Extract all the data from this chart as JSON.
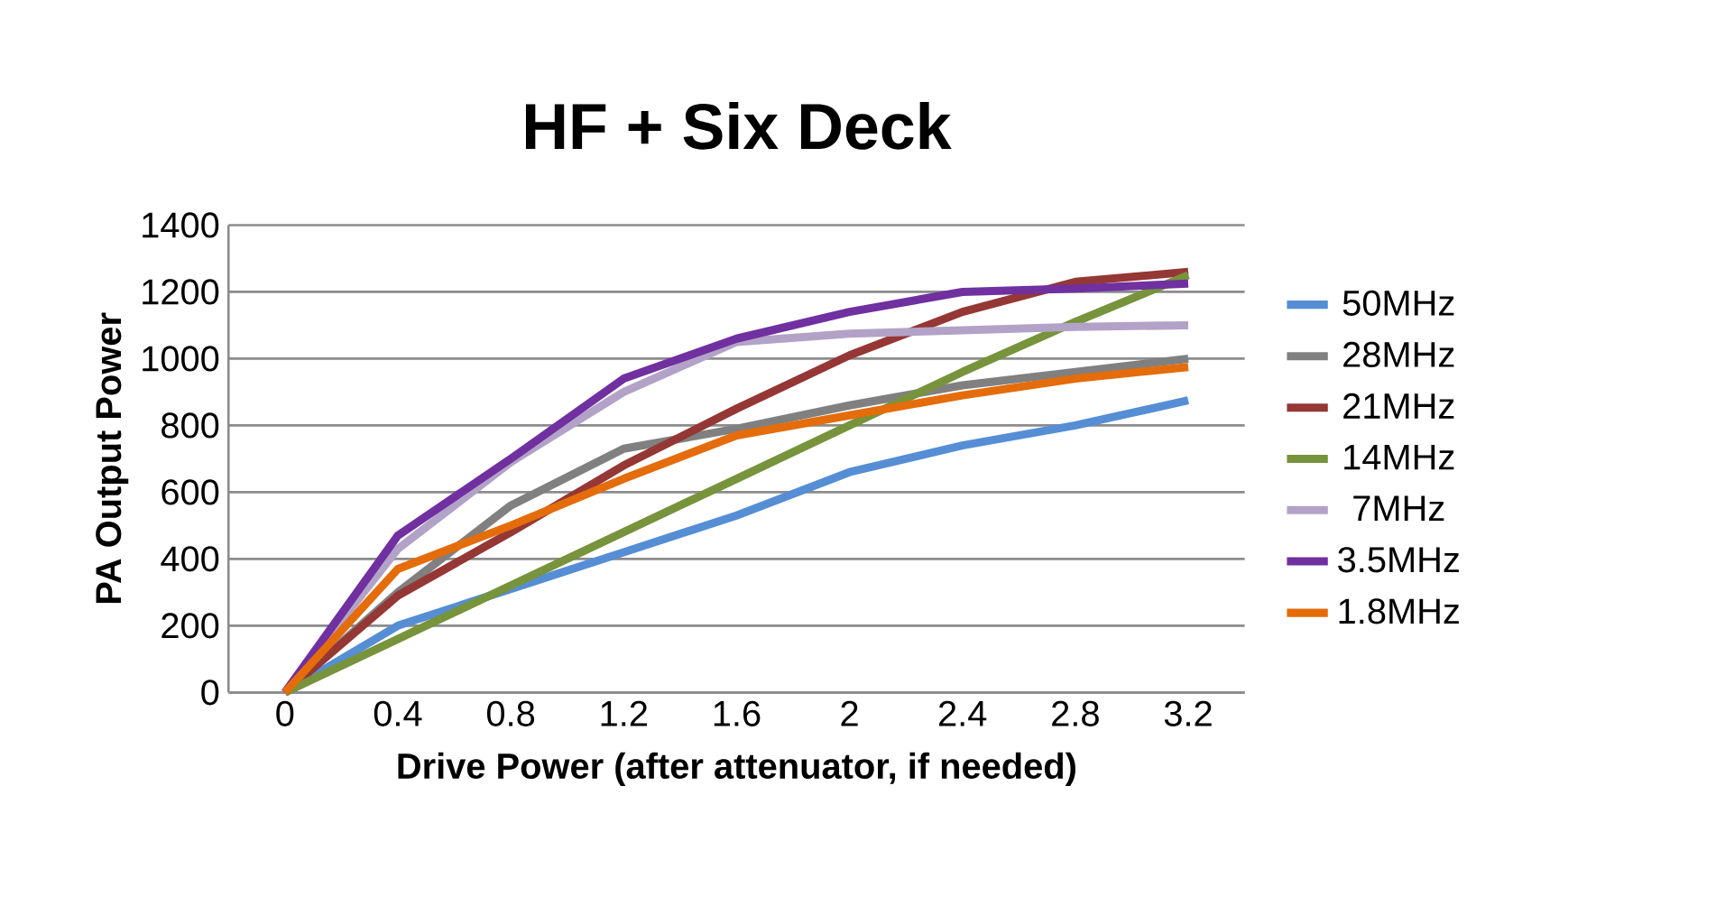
{
  "chart_data": {
    "type": "line",
    "title": "HF + Six Deck",
    "xlabel": "Drive Power (after attenuator, if needed)",
    "ylabel": "PA Output Power",
    "categories": [
      "0",
      "0.4",
      "0.8",
      "1.2",
      "1.6",
      "2",
      "2.4",
      "2.8",
      "3.2"
    ],
    "series": [
      {
        "name": "50MHz",
        "color": "#558ed5",
        "values": [
          0,
          200,
          310,
          420,
          530,
          660,
          740,
          800,
          875
        ]
      },
      {
        "name": "28MHz",
        "color": "#808080",
        "values": [
          0,
          300,
          560,
          730,
          790,
          860,
          920,
          960,
          1000
        ]
      },
      {
        "name": "21MHz",
        "color": "#953735",
        "values": [
          0,
          290,
          480,
          680,
          850,
          1010,
          1140,
          1230,
          1260
        ]
      },
      {
        "name": "14MHz",
        "color": "#77933c",
        "values": [
          0,
          160,
          320,
          480,
          640,
          800,
          960,
          1110,
          1250
        ]
      },
      {
        "name": "7MHz",
        "color": "#b3a2c7",
        "values": [
          0,
          430,
          690,
          900,
          1050,
          1075,
          1085,
          1095,
          1100
        ]
      },
      {
        "name": "3.5MHz",
        "color": "#7030a0",
        "values": [
          0,
          470,
          700,
          940,
          1060,
          1140,
          1200,
          1210,
          1225
        ]
      },
      {
        "name": "1.8MHz",
        "color": "#e46c0a",
        "values": [
          0,
          370,
          500,
          640,
          770,
          830,
          890,
          940,
          975
        ]
      }
    ],
    "ylim": [
      0,
      1400
    ],
    "yticks": [
      0,
      200,
      400,
      600,
      800,
      1000,
      1200,
      1400
    ],
    "grid": "y",
    "legend": "right",
    "marker": "none",
    "line_style": "solid"
  }
}
